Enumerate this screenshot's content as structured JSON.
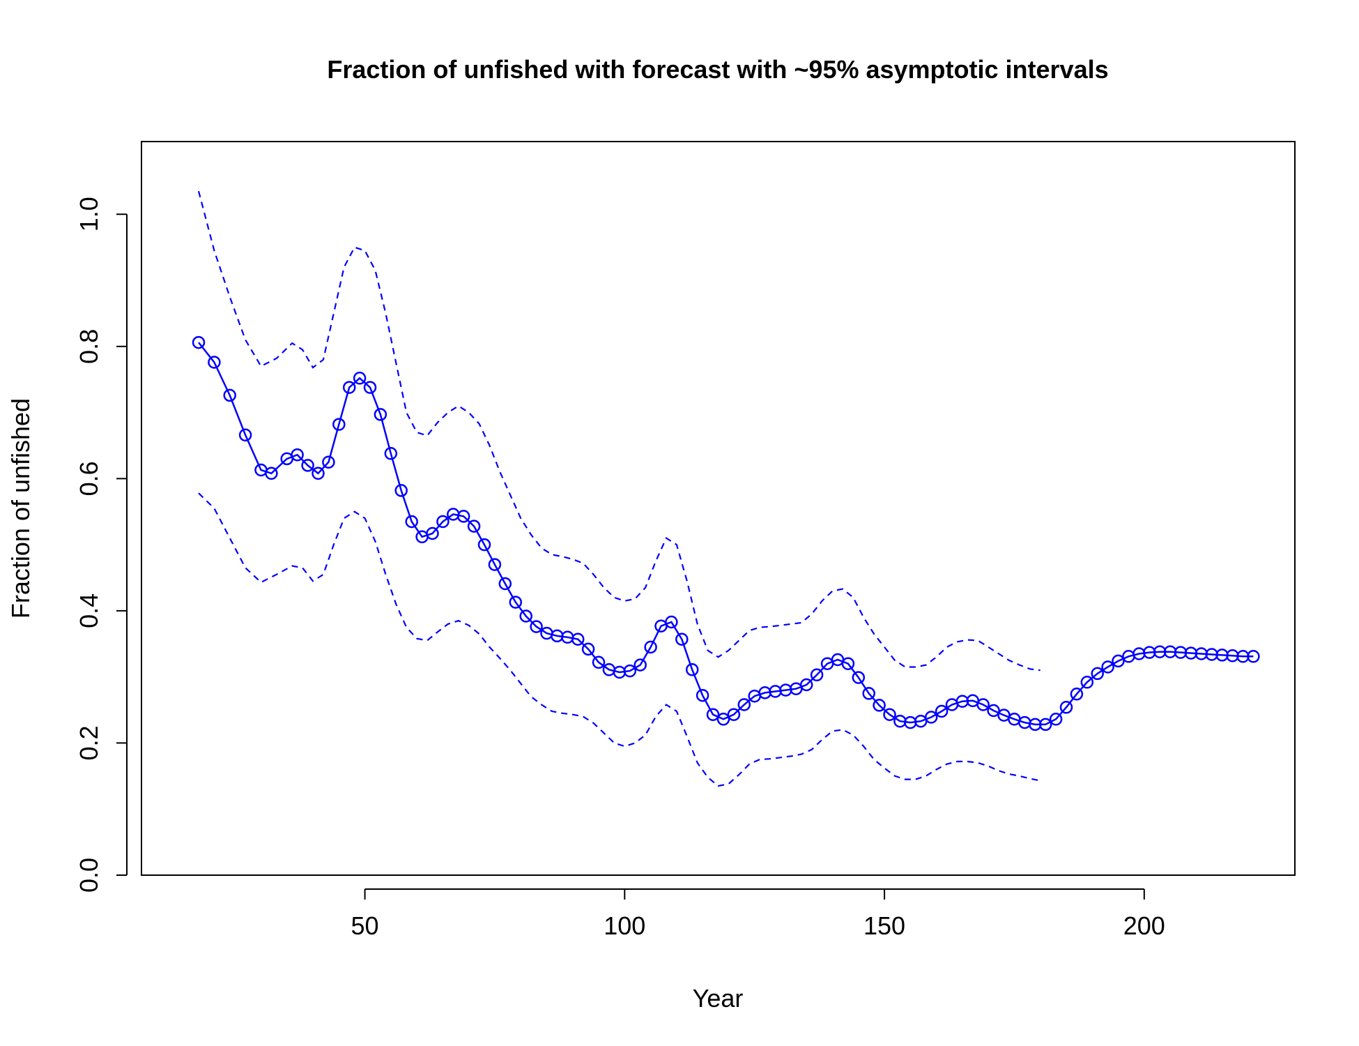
{
  "chart_data": {
    "type": "line",
    "title": "Fraction of unfished with forecast with ~95% asymptotic intervals",
    "xlabel": "Year",
    "ylabel": "Fraction of unfished",
    "xlim": [
      7,
      229
    ],
    "ylim": [
      0,
      1.11
    ],
    "x_ticks": [
      50,
      100,
      150,
      200
    ],
    "x_tick_labels": [
      "50",
      "100",
      "150",
      "200"
    ],
    "y_ticks": [
      0.0,
      0.2,
      0.4,
      0.6,
      0.8,
      1.0
    ],
    "y_tick_labels": [
      "0.0",
      "0.2",
      "0.4",
      "0.6",
      "0.8",
      "1.0"
    ],
    "grid": false,
    "legend": "none",
    "colors": {
      "series": "#0000ff",
      "axis": "#000000"
    },
    "series": [
      {
        "role": "estimate",
        "style": "line-with-open-circles",
        "points": [
          [
            18,
            0.806
          ],
          [
            21,
            0.776
          ],
          [
            24,
            0.726
          ],
          [
            27,
            0.666
          ],
          [
            30,
            0.613
          ],
          [
            32,
            0.608
          ],
          [
            35,
            0.63
          ],
          [
            37,
            0.636
          ],
          [
            39,
            0.62
          ],
          [
            41,
            0.608
          ],
          [
            43,
            0.625
          ],
          [
            45,
            0.682
          ],
          [
            47,
            0.738
          ],
          [
            49,
            0.752
          ],
          [
            51,
            0.738
          ],
          [
            53,
            0.697
          ],
          [
            55,
            0.638
          ],
          [
            57,
            0.582
          ],
          [
            59,
            0.535
          ],
          [
            61,
            0.512
          ],
          [
            63,
            0.517
          ],
          [
            65,
            0.535
          ],
          [
            67,
            0.546
          ],
          [
            69,
            0.543
          ],
          [
            71,
            0.528
          ],
          [
            73,
            0.5
          ],
          [
            75,
            0.47
          ],
          [
            77,
            0.441
          ],
          [
            79,
            0.413
          ],
          [
            81,
            0.392
          ],
          [
            83,
            0.376
          ],
          [
            85,
            0.366
          ],
          [
            87,
            0.362
          ],
          [
            89,
            0.36
          ],
          [
            91,
            0.357
          ],
          [
            93,
            0.342
          ],
          [
            95,
            0.322
          ],
          [
            97,
            0.311
          ],
          [
            99,
            0.307
          ],
          [
            101,
            0.309
          ],
          [
            103,
            0.318
          ],
          [
            105,
            0.345
          ],
          [
            107,
            0.377
          ],
          [
            109,
            0.383
          ],
          [
            111,
            0.357
          ],
          [
            113,
            0.311
          ],
          [
            115,
            0.272
          ],
          [
            117,
            0.243
          ],
          [
            119,
            0.236
          ],
          [
            121,
            0.243
          ],
          [
            123,
            0.258
          ],
          [
            125,
            0.271
          ],
          [
            127,
            0.276
          ],
          [
            129,
            0.278
          ],
          [
            131,
            0.28
          ],
          [
            133,
            0.282
          ],
          [
            135,
            0.288
          ],
          [
            137,
            0.303
          ],
          [
            139,
            0.32
          ],
          [
            141,
            0.326
          ],
          [
            143,
            0.32
          ],
          [
            145,
            0.299
          ],
          [
            147,
            0.275
          ],
          [
            149,
            0.257
          ],
          [
            151,
            0.243
          ],
          [
            153,
            0.233
          ],
          [
            155,
            0.231
          ],
          [
            157,
            0.233
          ],
          [
            159,
            0.239
          ],
          [
            161,
            0.248
          ],
          [
            163,
            0.258
          ],
          [
            165,
            0.263
          ],
          [
            167,
            0.264
          ],
          [
            169,
            0.258
          ],
          [
            171,
            0.249
          ],
          [
            173,
            0.242
          ],
          [
            175,
            0.236
          ],
          [
            177,
            0.231
          ],
          [
            179,
            0.228
          ],
          [
            181,
            0.228
          ],
          [
            183,
            0.236
          ],
          [
            185,
            0.254
          ],
          [
            187,
            0.274
          ],
          [
            189,
            0.292
          ],
          [
            191,
            0.305
          ],
          [
            193,
            0.315
          ],
          [
            195,
            0.324
          ],
          [
            197,
            0.331
          ],
          [
            199,
            0.335
          ],
          [
            201,
            0.337
          ],
          [
            203,
            0.338
          ],
          [
            205,
            0.338
          ],
          [
            207,
            0.337
          ],
          [
            209,
            0.336
          ],
          [
            211,
            0.335
          ],
          [
            213,
            0.334
          ],
          [
            215,
            0.333
          ],
          [
            217,
            0.332
          ],
          [
            219,
            0.331
          ],
          [
            221,
            0.331
          ]
        ]
      },
      {
        "role": "upper-95",
        "style": "dashed-line",
        "points": [
          [
            18,
            1.035
          ],
          [
            21,
            0.945
          ],
          [
            24,
            0.875
          ],
          [
            27,
            0.81
          ],
          [
            30,
            0.77
          ],
          [
            33,
            0.782
          ],
          [
            36,
            0.805
          ],
          [
            38,
            0.795
          ],
          [
            40,
            0.768
          ],
          [
            42,
            0.78
          ],
          [
            44,
            0.85
          ],
          [
            46,
            0.92
          ],
          [
            48,
            0.95
          ],
          [
            50,
            0.945
          ],
          [
            52,
            0.915
          ],
          [
            54,
            0.85
          ],
          [
            56,
            0.775
          ],
          [
            58,
            0.7
          ],
          [
            60,
            0.67
          ],
          [
            62,
            0.665
          ],
          [
            64,
            0.685
          ],
          [
            66,
            0.7
          ],
          [
            68,
            0.71
          ],
          [
            70,
            0.7
          ],
          [
            72,
            0.683
          ],
          [
            74,
            0.65
          ],
          [
            76,
            0.61
          ],
          [
            78,
            0.575
          ],
          [
            80,
            0.54
          ],
          [
            82,
            0.515
          ],
          [
            84,
            0.495
          ],
          [
            86,
            0.485
          ],
          [
            88,
            0.482
          ],
          [
            90,
            0.478
          ],
          [
            92,
            0.472
          ],
          [
            94,
            0.455
          ],
          [
            96,
            0.435
          ],
          [
            98,
            0.42
          ],
          [
            100,
            0.415
          ],
          [
            102,
            0.418
          ],
          [
            104,
            0.435
          ],
          [
            106,
            0.475
          ],
          [
            108,
            0.51
          ],
          [
            110,
            0.5
          ],
          [
            112,
            0.445
          ],
          [
            114,
            0.38
          ],
          [
            116,
            0.34
          ],
          [
            118,
            0.33
          ],
          [
            120,
            0.34
          ],
          [
            122,
            0.355
          ],
          [
            124,
            0.37
          ],
          [
            126,
            0.375
          ],
          [
            128,
            0.376
          ],
          [
            130,
            0.378
          ],
          [
            132,
            0.38
          ],
          [
            134,
            0.382
          ],
          [
            136,
            0.395
          ],
          [
            138,
            0.415
          ],
          [
            140,
            0.43
          ],
          [
            142,
            0.433
          ],
          [
            144,
            0.42
          ],
          [
            146,
            0.39
          ],
          [
            148,
            0.365
          ],
          [
            150,
            0.345
          ],
          [
            152,
            0.325
          ],
          [
            154,
            0.315
          ],
          [
            156,
            0.315
          ],
          [
            158,
            0.318
          ],
          [
            160,
            0.33
          ],
          [
            162,
            0.345
          ],
          [
            164,
            0.353
          ],
          [
            166,
            0.356
          ],
          [
            168,
            0.355
          ],
          [
            170,
            0.345
          ],
          [
            172,
            0.335
          ],
          [
            174,
            0.325
          ],
          [
            176,
            0.318
          ],
          [
            178,
            0.312
          ],
          [
            180,
            0.31
          ]
        ]
      },
      {
        "role": "lower-95",
        "style": "dashed-line",
        "points": [
          [
            18,
            0.578
          ],
          [
            21,
            0.555
          ],
          [
            24,
            0.51
          ],
          [
            27,
            0.465
          ],
          [
            30,
            0.443
          ],
          [
            33,
            0.455
          ],
          [
            36,
            0.468
          ],
          [
            38,
            0.465
          ],
          [
            40,
            0.445
          ],
          [
            42,
            0.455
          ],
          [
            44,
            0.5
          ],
          [
            46,
            0.54
          ],
          [
            48,
            0.55
          ],
          [
            50,
            0.54
          ],
          [
            52,
            0.505
          ],
          [
            54,
            0.455
          ],
          [
            56,
            0.41
          ],
          [
            58,
            0.375
          ],
          [
            60,
            0.358
          ],
          [
            62,
            0.355
          ],
          [
            64,
            0.368
          ],
          [
            66,
            0.38
          ],
          [
            68,
            0.385
          ],
          [
            70,
            0.378
          ],
          [
            72,
            0.365
          ],
          [
            74,
            0.345
          ],
          [
            76,
            0.328
          ],
          [
            78,
            0.31
          ],
          [
            80,
            0.29
          ],
          [
            82,
            0.27
          ],
          [
            84,
            0.258
          ],
          [
            86,
            0.248
          ],
          [
            88,
            0.245
          ],
          [
            90,
            0.243
          ],
          [
            92,
            0.24
          ],
          [
            94,
            0.23
          ],
          [
            96,
            0.215
          ],
          [
            98,
            0.2
          ],
          [
            100,
            0.195
          ],
          [
            102,
            0.2
          ],
          [
            104,
            0.212
          ],
          [
            106,
            0.24
          ],
          [
            108,
            0.258
          ],
          [
            110,
            0.248
          ],
          [
            112,
            0.21
          ],
          [
            114,
            0.17
          ],
          [
            116,
            0.148
          ],
          [
            118,
            0.135
          ],
          [
            120,
            0.138
          ],
          [
            122,
            0.152
          ],
          [
            124,
            0.168
          ],
          [
            126,
            0.175
          ],
          [
            128,
            0.176
          ],
          [
            130,
            0.178
          ],
          [
            132,
            0.18
          ],
          [
            134,
            0.183
          ],
          [
            136,
            0.19
          ],
          [
            138,
            0.205
          ],
          [
            140,
            0.218
          ],
          [
            142,
            0.22
          ],
          [
            144,
            0.212
          ],
          [
            146,
            0.195
          ],
          [
            148,
            0.175
          ],
          [
            150,
            0.162
          ],
          [
            152,
            0.15
          ],
          [
            154,
            0.145
          ],
          [
            156,
            0.145
          ],
          [
            158,
            0.15
          ],
          [
            160,
            0.16
          ],
          [
            162,
            0.168
          ],
          [
            164,
            0.172
          ],
          [
            166,
            0.172
          ],
          [
            168,
            0.17
          ],
          [
            170,
            0.165
          ],
          [
            172,
            0.158
          ],
          [
            174,
            0.153
          ],
          [
            176,
            0.15
          ],
          [
            178,
            0.146
          ],
          [
            180,
            0.143
          ]
        ]
      }
    ]
  }
}
